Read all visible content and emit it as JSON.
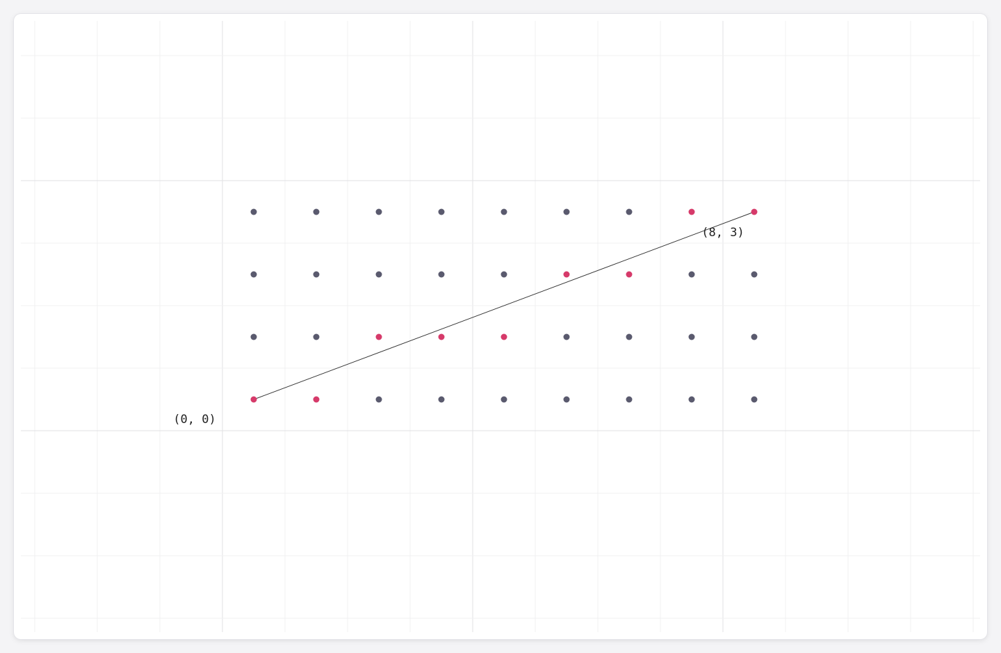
{
  "diagram": {
    "grid": {
      "cols": 4,
      "rows": 9
    },
    "colors": {
      "point": "#5a5a6e",
      "highlight": "#d63a6a",
      "segment": "#333333",
      "grid_minor": "#f0f0f2",
      "grid_major": "#e0e0e3"
    },
    "segment": {
      "from": [
        0,
        0
      ],
      "to": [
        8,
        3
      ]
    },
    "highlighted_points": [
      [
        0,
        0
      ],
      [
        1,
        0
      ],
      [
        2,
        1
      ],
      [
        3,
        1
      ],
      [
        4,
        1
      ],
      [
        5,
        2
      ],
      [
        6,
        2
      ],
      [
        7,
        3
      ],
      [
        8,
        3
      ]
    ],
    "labels": {
      "start": "(0, 0)",
      "end": "(8, 3)"
    }
  }
}
